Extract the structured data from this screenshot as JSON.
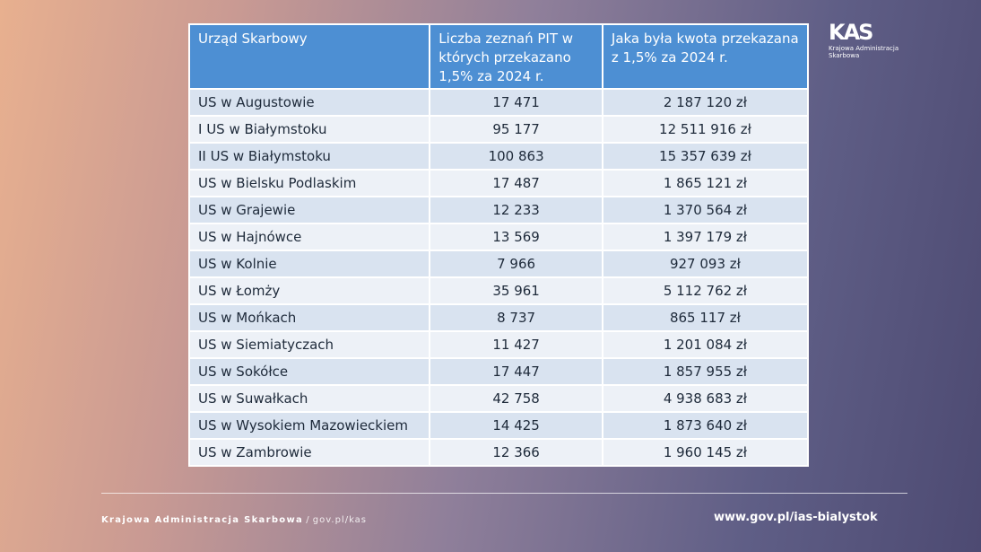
{
  "logo": {
    "mark": "KAS",
    "line1": "Krajowa Administracja",
    "line2": "Skarbowa"
  },
  "table": {
    "header": [
      "Urząd Skarbowy",
      "Liczba zeznań PIT w których przekazano 1,5% za 2024 r.",
      "Jaka była kwota przekazana z 1,5% za 2024 r."
    ],
    "rows": [
      [
        "US w Augustowie",
        "17 471",
        "2 187 120 zł"
      ],
      [
        "I US w Białymstoku",
        "95 177",
        "12 511 916 zł"
      ],
      [
        "II US w Białymstoku",
        "100 863",
        "15 357 639 zł"
      ],
      [
        "US w Bielsku Podlaskim",
        "17 487",
        "1 865 121 zł"
      ],
      [
        "US w Grajewie",
        "12 233",
        "1 370 564 zł"
      ],
      [
        "US w Hajnówce",
        "13 569",
        "1 397 179 zł"
      ],
      [
        "US w Kolnie",
        "7 966",
        "927 093 zł"
      ],
      [
        "US w Łomży",
        "35 961",
        "5 112 762 zł"
      ],
      [
        "US w Mońkach",
        "8 737",
        "865 117 zł"
      ],
      [
        "US w Siemiatyczach",
        "11 427",
        "1 201 084 zł"
      ],
      [
        "US w Sokółce",
        "17 447",
        "1 857 955 zł"
      ],
      [
        "US w Suwałkach",
        "42 758",
        "4 938 683 zł"
      ],
      [
        "US w Wysokiem Mazowieckiem",
        "14 425",
        "1 873 640 zł"
      ],
      [
        "US w Zambrowie",
        "12 366",
        "1 960 145 zł"
      ]
    ]
  },
  "footer": {
    "brand": "Krajowa Administracja Skarbowa",
    "separator": "/",
    "link": "gov.pl/kas",
    "website": "www.gov.pl/ias-bialystok"
  }
}
